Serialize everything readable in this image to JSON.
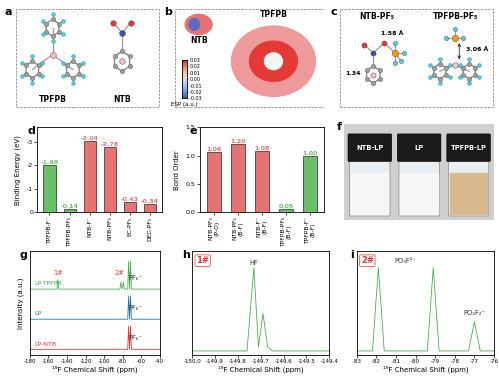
{
  "panels": {
    "a": {
      "panel": "a",
      "molecules": [
        "TPFPB",
        "NTB"
      ]
    },
    "b": {
      "panel": "b",
      "molecules": [
        "NTB",
        "TPFPB"
      ],
      "colorbar": {
        "title": "ESP (a.u.)",
        "range": [
          -0.03,
          0.03
        ],
        "ticks": [
          0.03,
          0.02,
          0.01,
          {
            "value": 0.0,
            "label": "0.00"
          },
          -0.01,
          -0.02,
          -0.03
        ]
      }
    },
    "c": {
      "panel": "c",
      "molecules": [
        "NTB-PF₅",
        "TPFPB-PF₅"
      ],
      "distances": [
        "1.34",
        "1.58 Å",
        "3.06 Å"
      ]
    },
    "f": {
      "panel": "f",
      "samples": [
        "NTB-LP",
        "LP",
        "TPFPB-LP"
      ]
    }
  },
  "chart_data": [
    {
      "panel": "d",
      "type": "bar",
      "y_label": "Binding Energy (eV)",
      "categories": [
        "TPFPB-F⁻",
        "TPFPB-PF₅",
        "NTB-F⁻",
        "NTB-PF₅",
        "EC-PF₅",
        "DEC-PF₅"
      ],
      "values": [
        -1.99,
        -0.14,
        -3.04,
        -2.78,
        -0.43,
        -0.34
      ],
      "colors": [
        "#6abf69",
        "#6abf69",
        "#e57373",
        "#e57373",
        "#e57373",
        "#e57373"
      ],
      "ylim": [
        0,
        -3.6
      ],
      "yticks": [
        0,
        -1,
        -2,
        -3
      ],
      "data_labels": true
    },
    {
      "panel": "e",
      "type": "bar",
      "y_label": "Bond Order",
      "categories": [
        "NTB-PF₅\n(P-O)",
        "NTB-PF₅\n(B-F)",
        "NTB-F⁻\n(B-F)",
        "TPFPB-PF₅\n(B-F)",
        "TPFPB-F⁻\n(B-F)"
      ],
      "values": [
        1.06,
        1.2,
        1.08,
        0.05,
        1.0
      ],
      "value_labels": [
        "1.06",
        "1.20",
        "1.08",
        "0.05",
        "1.00"
      ],
      "colors": [
        "#e57373",
        "#e57373",
        "#e57373",
        "#6abf69",
        "#6abf69"
      ],
      "ylim": [
        0,
        1.5
      ],
      "yticks": [
        {
          "value": 0,
          "label": "0.0"
        },
        {
          "value": 0.5,
          "label": "0.5"
        },
        {
          "value": 1,
          "label": "1.0"
        },
        {
          "value": 1.5,
          "label": "1.5"
        }
      ],
      "data_labels": true
    },
    {
      "panel": "g",
      "type": "line",
      "x_label": "¹⁹F Chemical Shift (ppm)",
      "y_label": "Intensity (a.u.)",
      "xlim": [
        -180,
        -40
      ],
      "xticks": [
        -180,
        -160,
        -140,
        -120,
        -100,
        -80,
        -60,
        -40
      ],
      "ylim": [
        -0.5,
        8.5
      ],
      "tick_labels": "x",
      "series": [
        {
          "name": "LP-TPFPB",
          "color": "#4caf50",
          "x": [
            -180,
            -151,
            -150,
            -149,
            -83,
            -81.8,
            -80.5,
            -79.1,
            -78,
            -74.5,
            -73.5,
            -72.5,
            -71.5,
            -70.5,
            -40
          ],
          "values": [
            5.2,
            5.2,
            6.0,
            5.2,
            5.2,
            5.8,
            5.2,
            5.8,
            5.2,
            5.2,
            7.6,
            5.2,
            7.6,
            5.2,
            5.2
          ]
        },
        {
          "name": "LP",
          "color": "#1f77b4",
          "x": [
            -180,
            -74.5,
            -73.5,
            -72.5,
            -71.5,
            -70.5,
            -40
          ],
          "values": [
            2.6,
            2.6,
            4.6,
            2.6,
            4.6,
            2.6,
            2.6
          ]
        },
        {
          "name": "LP-NTB",
          "color": "#e53935",
          "x": [
            -180,
            -74.5,
            -73.5,
            -72.5,
            -71.5,
            -70.5,
            -40
          ],
          "values": [
            0,
            0,
            2.0,
            0,
            2.0,
            0,
            0
          ]
        }
      ],
      "annotations": [
        {
          "text": "1#",
          "x": -150,
          "y": 6.6,
          "color": "#e53935"
        },
        {
          "text": "2#",
          "x": -84,
          "y": 6.6,
          "color": "#e53935"
        },
        {
          "text": "PF₆⁻",
          "x": -66,
          "y": 6.2,
          "color": "#333333"
        },
        {
          "text": "PF₆⁻",
          "x": -66,
          "y": 3.6,
          "color": "#333333"
        },
        {
          "text": "PF₆⁻",
          "x": -66,
          "y": 1.0,
          "color": "#333333"
        }
      ]
    },
    {
      "panel": "h",
      "type": "line",
      "title": "1#",
      "x_label": "¹⁹F Chemical Shift (ppm)",
      "xlim": [
        -150.0,
        -149.4
      ],
      "xticks": [
        -150.0,
        -149.9,
        -149.8,
        -149.7,
        -149.6,
        -149.5,
        -149.4
      ],
      "ylim": [
        -0.05,
        1.2
      ],
      "tick_labels": "x",
      "series": [
        {
          "color": "#4caf50",
          "x": [
            -150.0,
            -149.76,
            -149.73,
            -149.71,
            -149.69,
            -149.67,
            -149.65,
            -149.4
          ],
          "values": [
            0,
            0,
            1.0,
            0.05,
            0.45,
            0.05,
            0,
            0
          ]
        }
      ],
      "annotations": [
        {
          "text": "HF",
          "x": -149.73,
          "y": 1.05,
          "color": "#333333"
        }
      ]
    },
    {
      "panel": "i",
      "type": "line",
      "title": "2#",
      "x_label": "¹⁹F Chemical Shift (ppm)",
      "xlim": [
        -83,
        -76
      ],
      "xticks": [
        -83,
        -82,
        -81,
        -80,
        -79,
        -78,
        -77,
        -76
      ],
      "ylim": [
        -0.05,
        1.2
      ],
      "tick_labels": "x",
      "series": [
        {
          "color": "#4caf50",
          "x": [
            -83,
            -82.2,
            -81.9,
            -81.6,
            -79.4,
            -79.1,
            -78.8,
            -77.3,
            -77.0,
            -76.7,
            -76
          ],
          "values": [
            0,
            0,
            1.0,
            0,
            0,
            1.0,
            0,
            0,
            0.35,
            0,
            0
          ]
        }
      ],
      "annotations": [
        {
          "text": "PO₃F²⁻",
          "x": -80.5,
          "y": 1.08,
          "color": "#333333"
        },
        {
          "text": "PO₂F₂⁻",
          "x": -77.0,
          "y": 0.45,
          "color": "#333333"
        }
      ]
    }
  ]
}
